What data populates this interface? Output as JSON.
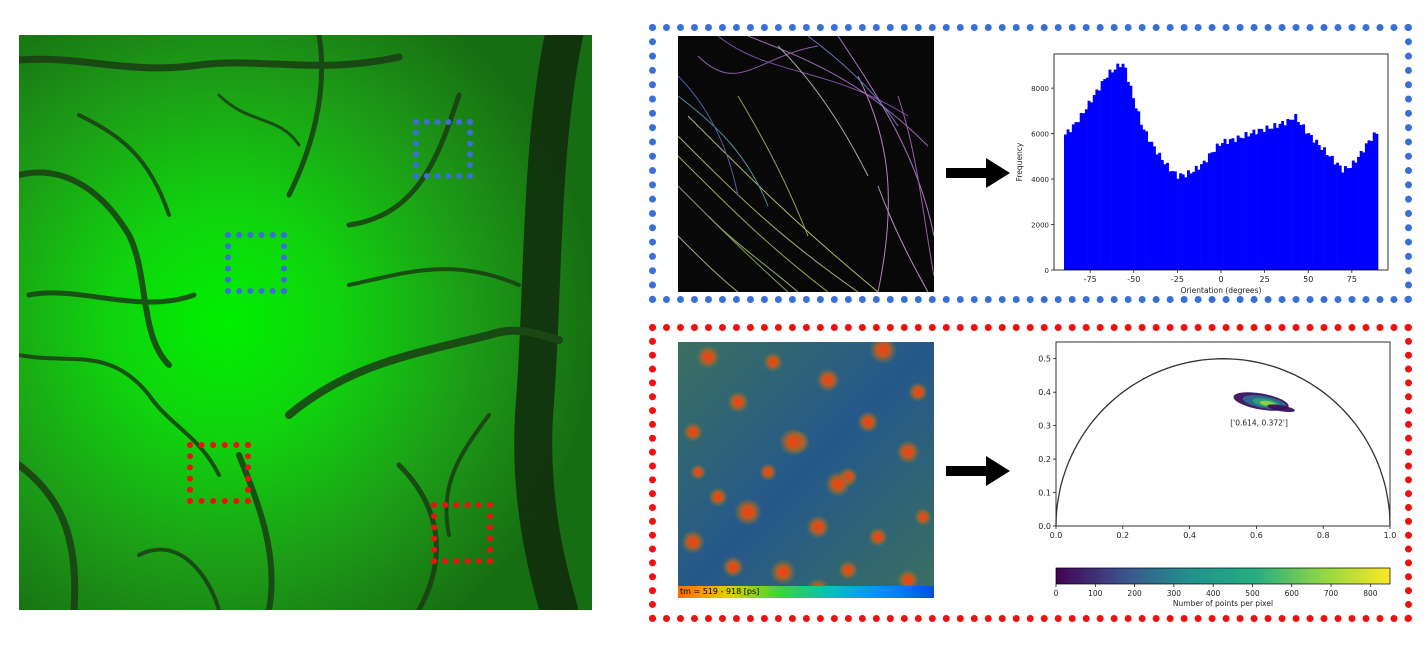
{
  "colors": {
    "blue_box": "#3a6fd8",
    "red_box": "#ee1111",
    "green_tissue": "#23b81c",
    "hist_bar": "#0000ff",
    "arrow": "#000000"
  },
  "left_image": {
    "icon": "fluorescent-tissue-image",
    "roi_boxes": [
      "blue",
      "blue",
      "red",
      "red"
    ]
  },
  "top_panel": {
    "image_icon": "fiber-orientation-map",
    "arrow_icon": "right-arrow-icon",
    "chart_data": {
      "type": "bar",
      "xlabel": "Orientation (degrees)",
      "ylabel": "Frequency",
      "xlim": [
        -90,
        90
      ],
      "ylim": [
        0,
        9500
      ],
      "xticks": [
        "-75",
        "-50",
        "-25",
        "0",
        "25",
        "50",
        "75"
      ],
      "yticks": [
        "0",
        "2000",
        "4000",
        "6000",
        "8000"
      ],
      "x": [
        -90,
        -85,
        -80,
        -75,
        -70,
        -65,
        -60,
        -57,
        -55,
        -50,
        -45,
        -40,
        -35,
        -30,
        -25,
        -20,
        -15,
        -10,
        -5,
        0,
        5,
        10,
        15,
        20,
        25,
        30,
        35,
        40,
        42,
        45,
        50,
        55,
        60,
        65,
        70,
        75,
        80,
        85,
        90
      ],
      "values": [
        5900,
        6300,
        6800,
        7400,
        8000,
        8600,
        8900,
        9100,
        8900,
        7500,
        6300,
        5600,
        5000,
        4500,
        4150,
        4200,
        4400,
        4700,
        5200,
        5600,
        5700,
        5800,
        5950,
        6100,
        6200,
        6300,
        6450,
        6600,
        6800,
        6500,
        6000,
        5600,
        5200,
        4800,
        4400,
        4600,
        5100,
        5700,
        6100
      ]
    }
  },
  "bottom_panel": {
    "image_icon": "flim-lifetime-map",
    "colorbar_text": "tm = 519 - 918 [ps]",
    "arrow_icon": "right-arrow-icon",
    "chart_data": {
      "type": "scatter",
      "xlim": [
        0,
        1
      ],
      "ylim": [
        0,
        0.55
      ],
      "xticks": [
        "0.0",
        "0.2",
        "0.4",
        "0.6",
        "0.8",
        "1.0"
      ],
      "yticks": [
        "0.0",
        "0.1",
        "0.2",
        "0.3",
        "0.4",
        "0.5"
      ],
      "annotation": "['0.614, 0.372']",
      "centroid": [
        0.614,
        0.372
      ],
      "colorbar_label": "Number of points per pixel",
      "colorbar_ticks": [
        "0",
        "100",
        "200",
        "300",
        "400",
        "500",
        "600",
        "700",
        "800"
      ],
      "colorbar_range": [
        0,
        850
      ]
    }
  }
}
